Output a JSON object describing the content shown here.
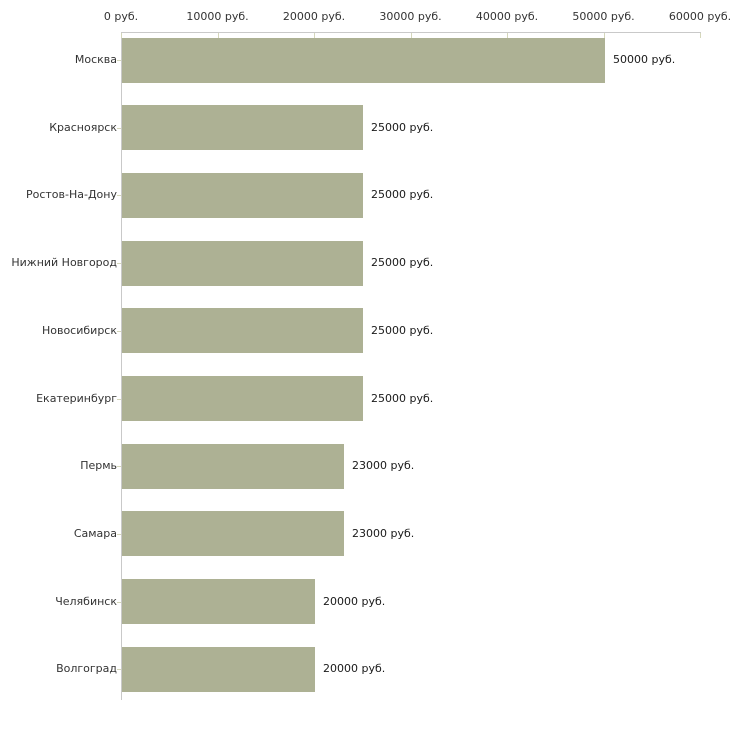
{
  "chart_data": {
    "type": "bar",
    "orientation": "horizontal",
    "title": "",
    "xlabel": "",
    "ylabel": "",
    "unit": "руб.",
    "categories": [
      "Москва",
      "Красноярск",
      "Ростов-На-Дону",
      "Нижний Новгород",
      "Новосибирск",
      "Екатеринбург",
      "Пермь",
      "Самара",
      "Челябинск",
      "Волгоград"
    ],
    "values": [
      50000,
      25000,
      25000,
      25000,
      25000,
      25000,
      23000,
      23000,
      20000,
      20000
    ],
    "value_labels": [
      "50000 руб.",
      "25000 руб.",
      "25000 руб.",
      "25000 руб.",
      "25000 руб.",
      "25000 руб.",
      "23000 руб.",
      "23000 руб.",
      "20000 руб.",
      "20000 руб."
    ],
    "x_tick_values": [
      0,
      10000,
      20000,
      30000,
      40000,
      50000,
      60000
    ],
    "x_tick_labels": [
      "0 руб.",
      "10000 руб.",
      "20000 руб.",
      "30000 руб.",
      "40000 руб.",
      "50000 руб.",
      "60000 руб."
    ],
    "xlim": [
      0,
      60000
    ],
    "grid": false,
    "legend": false,
    "axis_position": "top",
    "colors": {
      "bar_fill": "#adb194",
      "axis_line": "#c9c9c9",
      "tick_mark": "#d5d7bb",
      "label_text": "#333333",
      "value_text": "#1a1a1a",
      "background": "#ffffff"
    }
  }
}
